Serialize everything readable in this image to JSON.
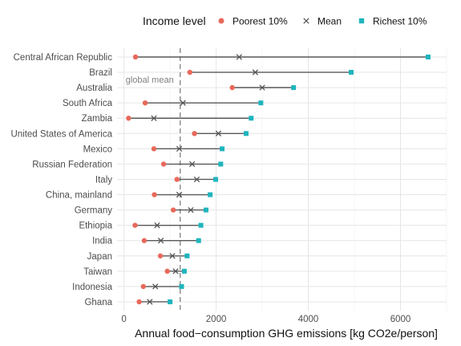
{
  "chart_data": {
    "type": "dumbbell",
    "xlabel": "Annual food−consumption GHG emissions [kg CO2e/person]",
    "ylabel": "",
    "xlim": [
      -150,
      7000
    ],
    "xticks": [
      0,
      2000,
      4000,
      6000
    ],
    "grid": true,
    "legend_title": "Income level",
    "legend_position": "top",
    "series": [
      {
        "name": "Poorest 10%",
        "marker": "circle",
        "color": "#E8695A"
      },
      {
        "name": "Mean",
        "marker": "cross",
        "color": "#555555"
      },
      {
        "name": "Richest 10%",
        "marker": "square",
        "color": "#1FB5BD"
      }
    ],
    "reference_line": {
      "x": 1220,
      "label": "global mean"
    },
    "categories": [
      "Central African Republic",
      "Brazil",
      "Australia",
      "South Africa",
      "Zambia",
      "United States of America",
      "Mexico",
      "Russian Federation",
      "Italy",
      "China, mainland",
      "Germany",
      "Ethiopia",
      "India",
      "Japan",
      "Taiwan",
      "Indonesia",
      "Ghana"
    ],
    "rows": [
      {
        "country": "Central African Republic",
        "poorest": 250,
        "mean": 2500,
        "richest": 6600
      },
      {
        "country": "Brazil",
        "poorest": 1430,
        "mean": 2850,
        "richest": 4930
      },
      {
        "country": "Australia",
        "poorest": 2350,
        "mean": 3000,
        "richest": 3680
      },
      {
        "country": "South Africa",
        "poorest": 460,
        "mean": 1280,
        "richest": 2970
      },
      {
        "country": "Zambia",
        "poorest": 100,
        "mean": 650,
        "richest": 2760
      },
      {
        "country": "United States of America",
        "poorest": 1530,
        "mean": 2050,
        "richest": 2650
      },
      {
        "country": "Mexico",
        "poorest": 650,
        "mean": 1200,
        "richest": 2130
      },
      {
        "country": "Russian Federation",
        "poorest": 860,
        "mean": 1480,
        "richest": 2100
      },
      {
        "country": "Italy",
        "poorest": 1150,
        "mean": 1580,
        "richest": 1990
      },
      {
        "country": "China, mainland",
        "poorest": 660,
        "mean": 1200,
        "richest": 1870
      },
      {
        "country": "Germany",
        "poorest": 1070,
        "mean": 1450,
        "richest": 1780
      },
      {
        "country": "Ethiopia",
        "poorest": 240,
        "mean": 720,
        "richest": 1670
      },
      {
        "country": "India",
        "poorest": 440,
        "mean": 800,
        "richest": 1620
      },
      {
        "country": "Japan",
        "poorest": 790,
        "mean": 1050,
        "richest": 1370
      },
      {
        "country": "Taiwan",
        "poorest": 940,
        "mean": 1120,
        "richest": 1310
      },
      {
        "country": "Indonesia",
        "poorest": 420,
        "mean": 680,
        "richest": 1250
      },
      {
        "country": "Ghana",
        "poorest": 330,
        "mean": 560,
        "richest": 1000
      }
    ]
  }
}
